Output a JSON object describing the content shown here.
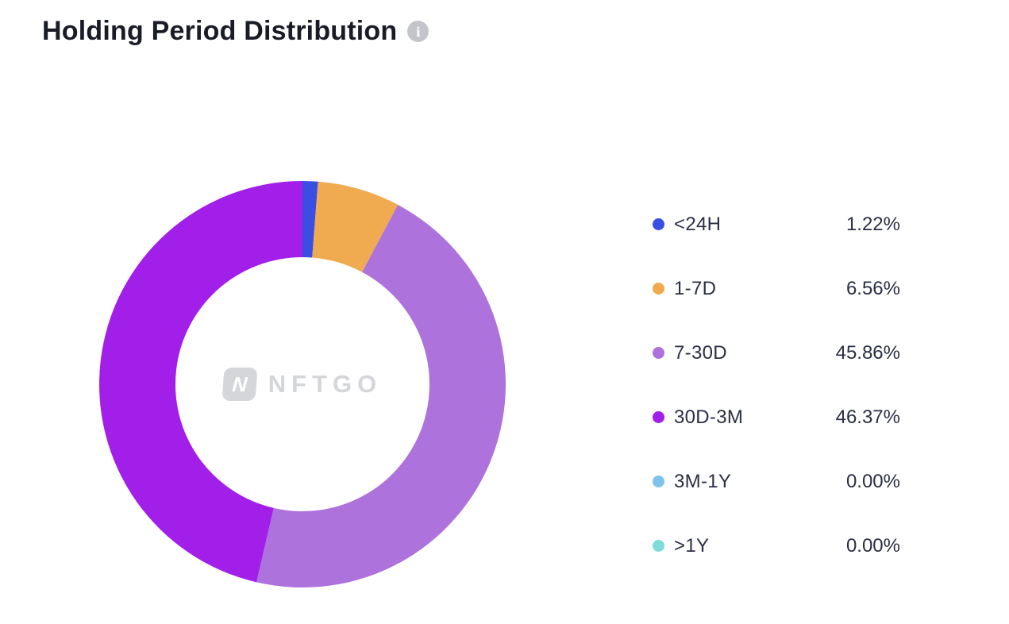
{
  "header": {
    "title": "Holding Period Distribution",
    "info_icon_glyph": "i"
  },
  "watermark": {
    "logo_glyph": "N",
    "text": "NFTGO"
  },
  "chart_data": {
    "type": "pie",
    "variant": "donut",
    "title": "Holding Period Distribution",
    "categories": [
      "<24H",
      "1-7D",
      "7-30D",
      "30D-3M",
      "3M-1Y",
      ">1Y"
    ],
    "values": [
      1.22,
      6.56,
      45.86,
      46.37,
      0.0,
      0.0
    ],
    "value_labels": [
      "1.22%",
      "6.56%",
      "45.86%",
      "46.37%",
      "0.00%",
      "0.00%"
    ],
    "colors": [
      "#3a4ee2",
      "#f0aa4f",
      "#ad72dc",
      "#a21ee9",
      "#7fc3ec",
      "#7edcd6"
    ],
    "legend_position": "right",
    "start_angle_deg": 0,
    "direction": "clockwise",
    "outer_radius_px": 256,
    "inner_radius_px": 160
  }
}
